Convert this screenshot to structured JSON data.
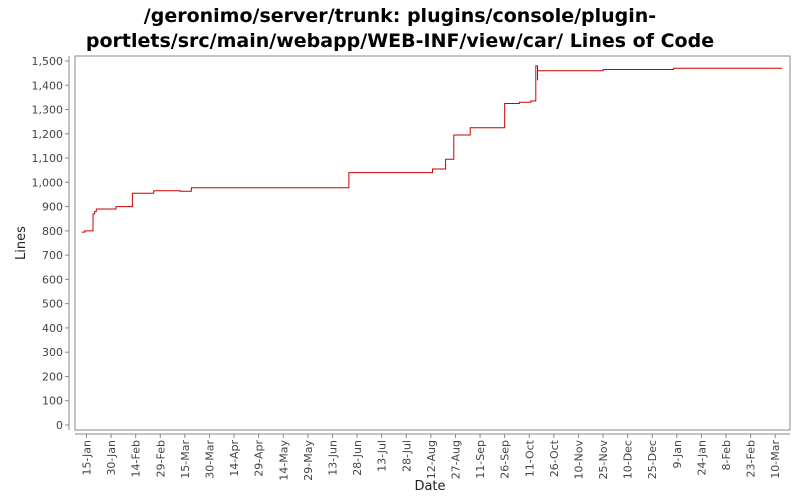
{
  "chart_data": {
    "type": "line",
    "title_lines": [
      "/geronimo/server/trunk: plugins/console/plugin-",
      "portlets/src/main/webapp/WEB-INF/view/car/ Lines of Code"
    ],
    "xlabel": "Date",
    "ylabel": "Lines",
    "ylim": [
      0,
      1500
    ],
    "yticks": [
      0,
      100,
      200,
      300,
      400,
      500,
      600,
      700,
      800,
      900,
      1000,
      1100,
      1200,
      1300,
      1400,
      1500
    ],
    "ytick_labels": [
      "0",
      "100",
      "200",
      "300",
      "400",
      "500",
      "600",
      "700",
      "800",
      "900",
      "1,000",
      "1,100",
      "1,200",
      "1,300",
      "1,400",
      "1,500"
    ],
    "xlim": [
      "2008-01-08",
      "2009-03-19"
    ],
    "xticks": [
      "2008-01-15",
      "2008-01-30",
      "2008-02-14",
      "2008-02-29",
      "2008-03-15",
      "2008-03-30",
      "2008-04-14",
      "2008-04-29",
      "2008-05-14",
      "2008-05-29",
      "2008-06-13",
      "2008-06-28",
      "2008-07-13",
      "2008-07-28",
      "2008-08-12",
      "2008-08-27",
      "2008-09-11",
      "2008-09-26",
      "2008-10-11",
      "2008-10-26",
      "2008-11-10",
      "2008-11-25",
      "2008-12-10",
      "2008-12-25",
      "2009-01-09",
      "2009-01-24",
      "2009-02-08",
      "2009-02-23",
      "2009-03-10"
    ],
    "xtick_labels": [
      "15-Jan",
      "30-Jan",
      "14-Feb",
      "29-Feb",
      "15-Mar",
      "30-Mar",
      "14-Apr",
      "29-Apr",
      "14-May",
      "29-May",
      "13-Jun",
      "28-Jun",
      "13-Jul",
      "28-Jul",
      "12-Aug",
      "27-Aug",
      "11-Sep",
      "26-Sep",
      "11-Oct",
      "26-Oct",
      "10-Nov",
      "25-Nov",
      "10-Dec",
      "25-Dec",
      "9-Jan",
      "24-Jan",
      "8-Feb",
      "23-Feb",
      "10-Mar"
    ],
    "grid": false,
    "line_color": "#cc0000",
    "series": [
      {
        "step": true,
        "points": [
          [
            "2008-01-12",
            795
          ],
          [
            "2008-01-14",
            800
          ],
          [
            "2008-01-19",
            870
          ],
          [
            "2008-01-20",
            880
          ],
          [
            "2008-01-21",
            890
          ],
          [
            "2008-02-02",
            900
          ],
          [
            "2008-02-12",
            955
          ],
          [
            "2008-02-25",
            965
          ],
          [
            "2008-03-12",
            963
          ],
          [
            "2008-03-19",
            978
          ],
          [
            "2008-06-23",
            1040
          ],
          [
            "2008-08-13",
            1055
          ],
          [
            "2008-08-21",
            1095
          ],
          [
            "2008-08-26",
            1195
          ],
          [
            "2008-09-05",
            1225
          ],
          [
            "2008-09-26",
            1325
          ],
          [
            "2008-10-05",
            1330
          ],
          [
            "2008-10-12",
            1335
          ],
          [
            "2008-10-15",
            1480
          ],
          [
            "2008-10-16",
            1420
          ],
          [
            "2008-10-16",
            1460
          ],
          [
            "2008-11-25",
            1465
          ],
          [
            "2009-01-07",
            1470
          ],
          [
            "2009-03-14",
            1472
          ]
        ]
      }
    ]
  }
}
